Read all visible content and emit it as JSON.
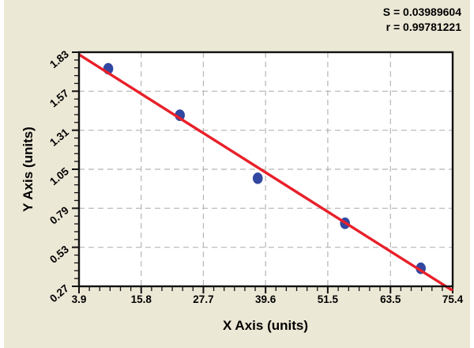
{
  "panel": {
    "background": "#ece8d6"
  },
  "annotations": {
    "s_label": "S = 0.03989604",
    "r_label": "r = 0.99781221"
  },
  "chart_data": {
    "type": "scatter",
    "title": "",
    "xlabel": "X Axis (units)",
    "ylabel": "Y Axis (units)",
    "xlim": [
      3.9,
      75.4
    ],
    "ylim": [
      0.27,
      1.83
    ],
    "x_tick_values": [
      3.9,
      15.8,
      27.7,
      39.6,
      51.5,
      63.5,
      75.4
    ],
    "x_tick_labels": [
      "3.9",
      "15.8",
      "27.7",
      "39.6",
      "51.5",
      "63.5",
      "75.4"
    ],
    "y_tick_values": [
      0.27,
      0.53,
      0.79,
      1.05,
      1.31,
      1.57,
      1.83
    ],
    "y_tick_labels": [
      "0.27",
      "0.53",
      "0.79",
      "1.05",
      "1.31",
      "1.57",
      "1.83"
    ],
    "x_minor_per_major": 5,
    "y_minor_per_major": 4,
    "grid": {
      "style": "dashed",
      "color": "#b5b5b5",
      "at_major_ticks": true
    },
    "points": [
      {
        "x": 9.5,
        "y": 1.72
      },
      {
        "x": 23.2,
        "y": 1.41
      },
      {
        "x": 38.1,
        "y": 0.99
      },
      {
        "x": 54.8,
        "y": 0.69
      },
      {
        "x": 69.3,
        "y": 0.39
      }
    ],
    "fit_line": {
      "type": "linear",
      "slope": -0.022,
      "intercept": 1.9,
      "x_start": 3.9,
      "x_end": 75.4
    },
    "stats": {
      "S": 0.03989604,
      "r": 0.99781221
    },
    "colors": {
      "point": "#3147a0",
      "line": "#e8202a",
      "frame": "#111111",
      "plot_bg": "#ffffff",
      "tick": "#111111",
      "text": "#000000"
    }
  }
}
